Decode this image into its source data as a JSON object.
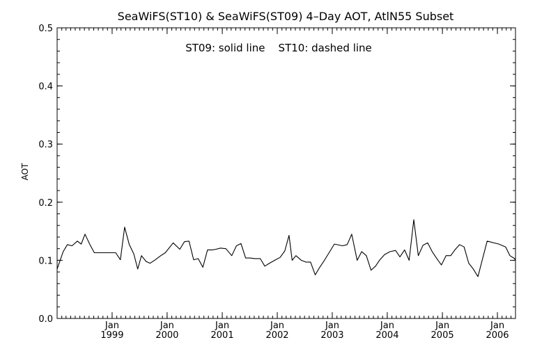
{
  "chart_data": {
    "type": "line",
    "title": "SeaWiFS(ST10) & SeaWiFS(ST09) 4–Day AOT, AtlN55 Subset",
    "annotation": "ST09: solid line    ST10: dashed line",
    "xlabel": "",
    "ylabel": "AOT",
    "xlim": [
      "1998-01-01",
      "2006-05-01"
    ],
    "ylim": [
      0.0,
      0.5
    ],
    "yticks": [
      0.0,
      0.1,
      0.2,
      0.3,
      0.4,
      0.5
    ],
    "ytick_labels": [
      "0.0",
      "0.1",
      "0.2",
      "0.3",
      "0.4",
      "0.5"
    ],
    "xticks": [
      "1999-01-01",
      "2000-01-01",
      "2001-01-01",
      "2002-01-01",
      "2003-01-01",
      "2004-01-01",
      "2005-01-01",
      "2006-01-01"
    ],
    "xtick_month_labels": [
      "Jan",
      "Jan",
      "Jan",
      "Jan",
      "Jan",
      "Jan",
      "Jan",
      "Jan"
    ],
    "xtick_year_labels": [
      "1999",
      "2000",
      "2001",
      "2002",
      "2003",
      "2004",
      "2005",
      "2006"
    ],
    "grid": false,
    "series": [
      {
        "style": "solid",
        "x": [
          "1998-01-01",
          "1998-02-10",
          "1998-03-10",
          "1998-04-10",
          "1998-05-15",
          "1998-06-10",
          "1998-07-05",
          "1998-08-05",
          "1998-09-05",
          "1998-10-10",
          "1998-11-15",
          "1998-12-15",
          "1999-01-25",
          "1999-02-25",
          "1999-03-25",
          "1999-04-25",
          "1999-05-25",
          "1999-06-20",
          "1999-07-15",
          "1999-08-15",
          "1999-09-10",
          "1999-10-15",
          "1999-11-20",
          "1999-12-20",
          "2000-02-10",
          "2000-03-25",
          "2000-04-25",
          "2000-05-25",
          "2000-06-25",
          "2000-07-25",
          "2000-08-25",
          "2000-09-25",
          "2000-10-25",
          "2000-11-20",
          "2000-12-20",
          "2001-01-25",
          "2001-03-05",
          "2001-04-05",
          "2001-05-05",
          "2001-06-05",
          "2001-07-05",
          "2001-08-05",
          "2001-09-10",
          "2001-10-10",
          "2001-11-10",
          "2001-12-15",
          "2002-01-20",
          "2002-02-20",
          "2002-03-20",
          "2002-04-10",
          "2002-05-05",
          "2002-06-10",
          "2002-07-10",
          "2002-08-10",
          "2002-09-10",
          "2002-10-10",
          "2002-11-10",
          "2003-01-15",
          "2003-03-10",
          "2003-04-10",
          "2003-05-10",
          "2003-06-15",
          "2003-07-15",
          "2003-08-15",
          "2003-09-15",
          "2003-10-15",
          "2003-11-10",
          "2003-12-15",
          "2004-01-20",
          "2004-02-25",
          "2004-03-25",
          "2004-04-25",
          "2004-05-25",
          "2004-06-25",
          "2004-07-25",
          "2004-08-25",
          "2004-09-25",
          "2004-10-25",
          "2004-11-25",
          "2004-12-25",
          "2005-01-25",
          "2005-02-25",
          "2005-03-25",
          "2005-04-25",
          "2005-05-25",
          "2005-06-25",
          "2005-07-25",
          "2005-08-25",
          "2005-09-25",
          "2005-10-25",
          "2006-01-10",
          "2006-02-25",
          "2006-03-25",
          "2006-04-25",
          "2006-05-01"
        ],
        "y": [
          0.085,
          0.115,
          0.127,
          0.125,
          0.133,
          0.128,
          0.145,
          0.128,
          0.113,
          0.113,
          0.113,
          0.113,
          0.113,
          0.101,
          0.157,
          0.127,
          0.111,
          0.085,
          0.108,
          0.098,
          0.095,
          0.101,
          0.108,
          0.113,
          0.13,
          0.119,
          0.132,
          0.133,
          0.101,
          0.103,
          0.088,
          0.118,
          0.118,
          0.119,
          0.121,
          0.12,
          0.108,
          0.125,
          0.129,
          0.104,
          0.104,
          0.103,
          0.103,
          0.09,
          0.095,
          0.1,
          0.105,
          0.116,
          0.143,
          0.1,
          0.108,
          0.1,
          0.097,
          0.097,
          0.075,
          0.088,
          0.1,
          0.128,
          0.125,
          0.127,
          0.145,
          0.1,
          0.115,
          0.108,
          0.083,
          0.09,
          0.1,
          0.11,
          0.115,
          0.117,
          0.106,
          0.118,
          0.1,
          0.17,
          0.108,
          0.126,
          0.13,
          0.115,
          0.103,
          0.092,
          0.108,
          0.108,
          0.118,
          0.127,
          0.123,
          0.095,
          0.085,
          0.072,
          0.103,
          0.133,
          0.128,
          0.123,
          0.108,
          0.103,
          0.1
        ]
      }
    ]
  }
}
